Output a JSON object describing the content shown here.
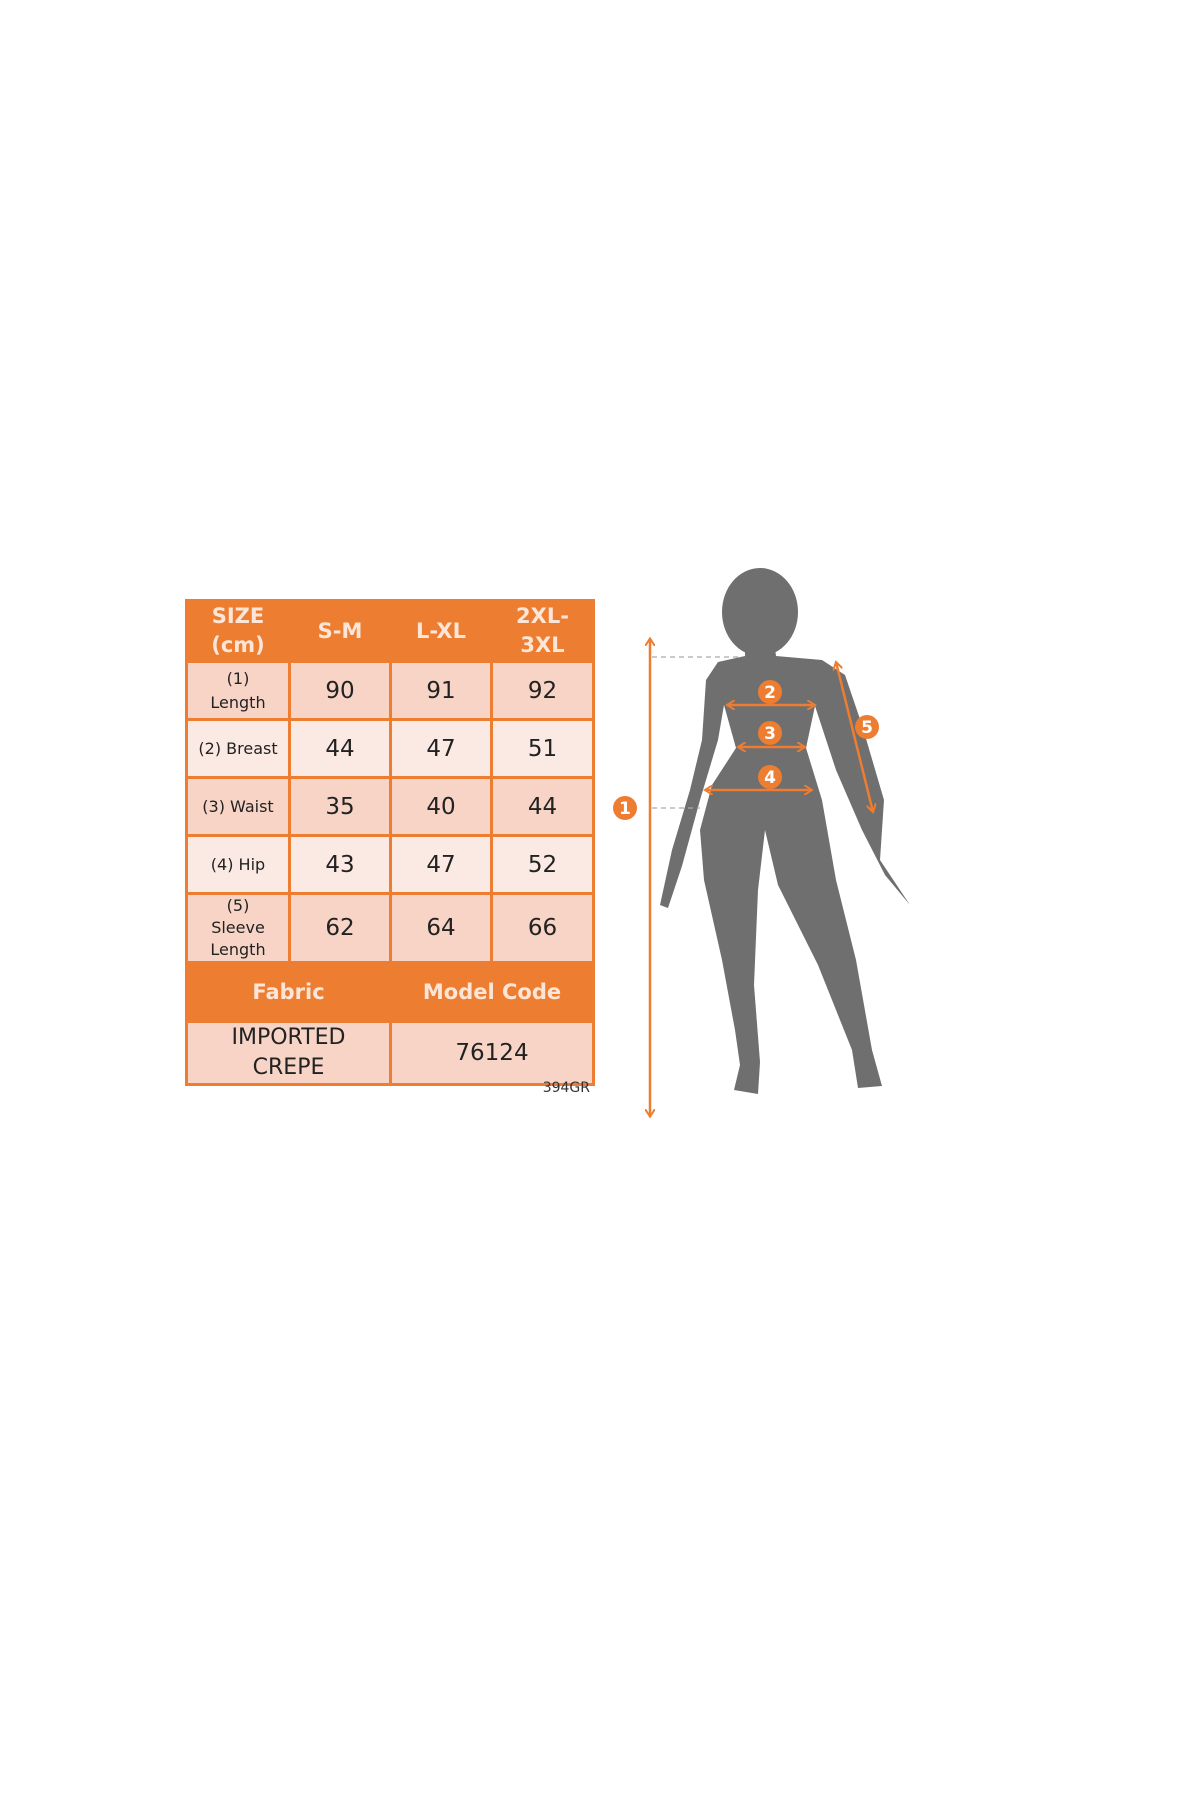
{
  "table": {
    "header": [
      "SIZE\n(cm)",
      "S-M",
      "L-XL",
      "2XL-\n3XL"
    ],
    "rows": [
      {
        "label": "(1)\nLength",
        "values": [
          "90",
          "91",
          "92"
        ]
      },
      {
        "label": "(2) Breast",
        "values": [
          "44",
          "47",
          "51"
        ]
      },
      {
        "label": "(3) Waist",
        "values": [
          "35",
          "40",
          "44"
        ]
      },
      {
        "label": "(4) Hip",
        "values": [
          "43",
          "47",
          "52"
        ]
      },
      {
        "label": "(5)\nSleeve\nLength",
        "values": [
          "62",
          "64",
          "66"
        ]
      }
    ],
    "footer_headers": [
      "Fabric",
      "Model Code"
    ],
    "footer_values": [
      "IMPORTED\nCREPE",
      "76124"
    ]
  },
  "product_code": "394GR",
  "figure": {
    "markers": [
      "1",
      "2",
      "3",
      "4",
      "5"
    ],
    "icon": "female-body-silhouette-icon"
  },
  "colors": {
    "accent": "#ED7D31",
    "row_dark": "#F7D4C6",
    "row_light": "#FBEAE4",
    "silhouette": "#6F6F6F"
  }
}
